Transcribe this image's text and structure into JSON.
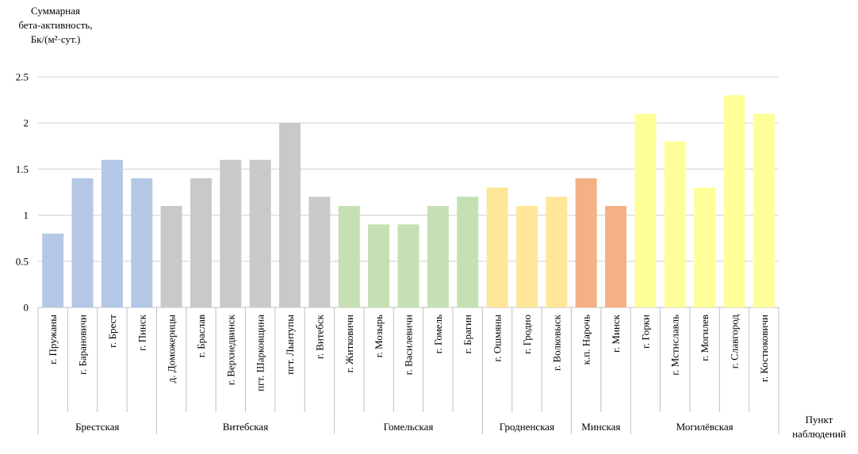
{
  "chart_data": {
    "type": "bar",
    "ylabel_lines": [
      "Суммарная",
      "бета-активность,",
      "Бк/(м²·сут.)"
    ],
    "xlabel_lines": [
      "Пункт",
      "наблюдений"
    ],
    "ylim": [
      0,
      2.5
    ],
    "yticks": [
      "0",
      "0.5",
      "1",
      "1.5",
      "2",
      "2.5"
    ],
    "grid": true,
    "categories": [
      "г. Пружаны",
      "г. Барановичи",
      "г. Брест",
      "г. Пинск",
      "д. Доможерицы",
      "г. Браслав",
      "г. Верхнедвинск",
      "пгт. Шарковщина",
      "пгт. Лынтупы",
      "г. Витебск",
      "г. Житковичи",
      "г. Мозырь",
      "г. Василевичи",
      "г. Гомель",
      "г. Брагин",
      "г. Ошмяны",
      "г. Гродно",
      "г. Волковыск",
      "к.п. Нарочь",
      "г. Минск",
      "г. Горки",
      "г. Мстиславль",
      "г. Могилев",
      "г. Славгород",
      "г. Костюковичи"
    ],
    "values": [
      0.8,
      1.4,
      1.6,
      1.4,
      1.1,
      1.4,
      1.6,
      1.6,
      2.0,
      1.2,
      1.1,
      0.9,
      0.9,
      1.1,
      1.2,
      1.3,
      1.1,
      1.2,
      1.4,
      1.1,
      2.1,
      1.8,
      1.3,
      2.3,
      2.1
    ],
    "groups": [
      {
        "name": "Брестская",
        "start": 0,
        "count": 4,
        "color": "#b4c7e7"
      },
      {
        "name": "Витебская",
        "start": 4,
        "count": 6,
        "color": "#c9c9c9"
      },
      {
        "name": "Гомельская",
        "start": 10,
        "count": 5,
        "color": "#c5e0b4"
      },
      {
        "name": "Гродненская",
        "start": 15,
        "count": 3,
        "color": "#ffe699"
      },
      {
        "name": "Минская",
        "start": 18,
        "count": 2,
        "color": "#f4b183"
      },
      {
        "name": "Могилёвская",
        "start": 20,
        "count": 5,
        "color": "#ffff99"
      }
    ]
  }
}
